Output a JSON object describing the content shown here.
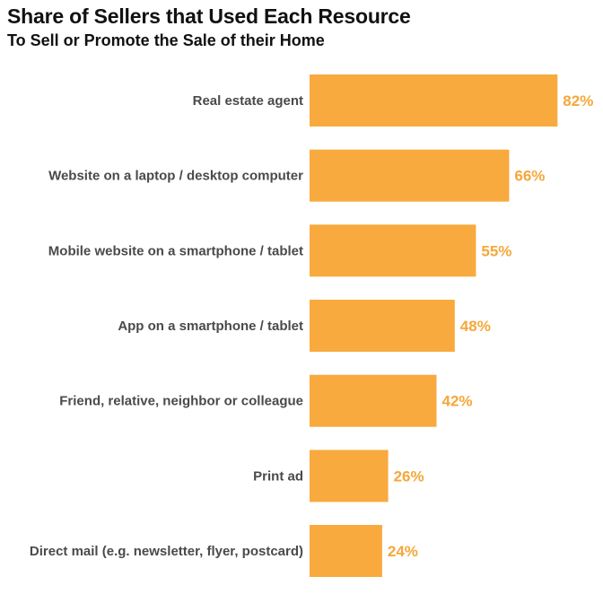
{
  "colors": {
    "bar": "#F8AA3F",
    "value_label": "#F5A73A",
    "category_label": "#4A4A4A",
    "title": "#111111"
  },
  "chart_data": {
    "type": "bar",
    "orientation": "horizontal",
    "title": "Share of Sellers that Used Each Resource",
    "subtitle": "To Sell or Promote the Sale of their Home",
    "xlabel": "",
    "ylabel": "",
    "xlim": [
      0,
      100
    ],
    "grid": false,
    "categories": [
      "Real estate agent",
      "Website on a laptop / desktop computer",
      "Mobile website on a smartphone / tablet",
      "App on a smartphone / tablet",
      "Friend, relative, neighbor or colleague",
      "Print ad",
      "Direct mail (e.g. newsletter, flyer, postcard)"
    ],
    "values": [
      82,
      66,
      55,
      48,
      42,
      26,
      24
    ],
    "value_labels": [
      "82%",
      "66%",
      "55%",
      "48%",
      "42%",
      "26%",
      "24%"
    ]
  }
}
